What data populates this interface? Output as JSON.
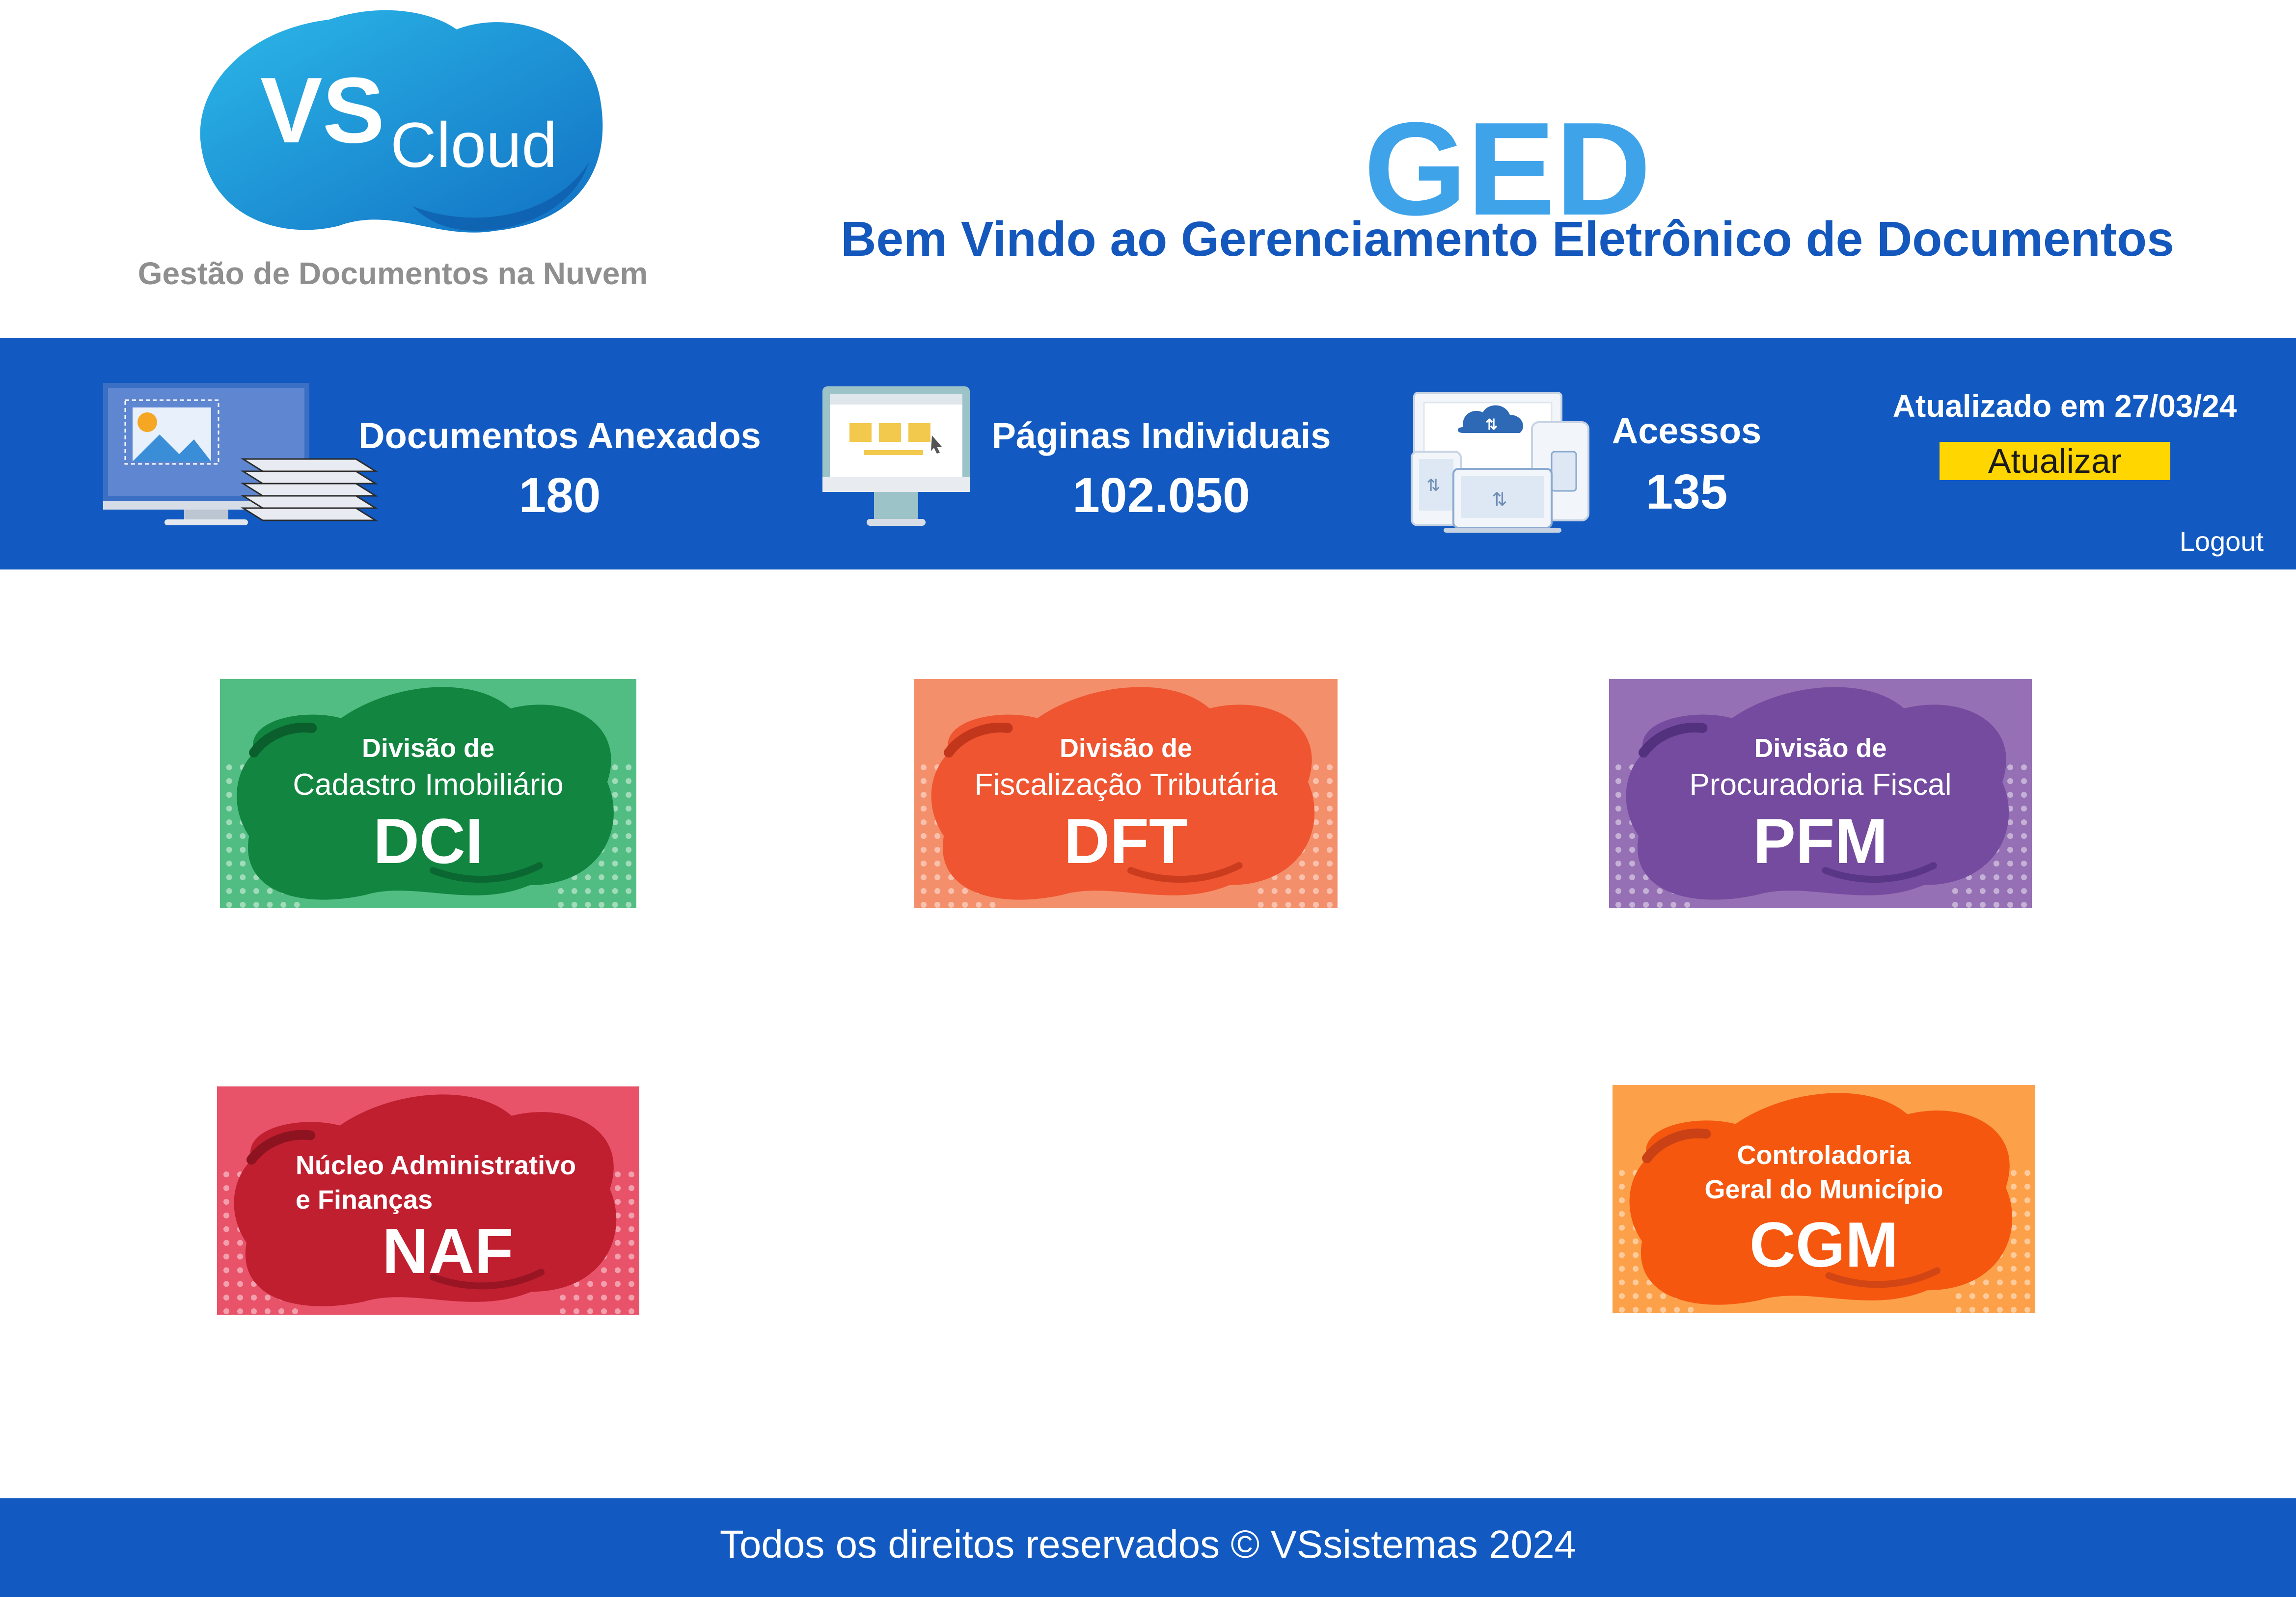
{
  "brand": {
    "logo_vs": "VS",
    "logo_cloud": "Cloud",
    "tagline": "Gestão de Documentos na Nuvem"
  },
  "header": {
    "title": "GED",
    "subtitle": "Bem Vindo ao Gerenciamento Eletrônico de Documentos"
  },
  "stats": {
    "documents": {
      "label": "Documentos Anexados",
      "value": "180",
      "icon": "monitor-documents-icon"
    },
    "pages": {
      "label": "Páginas Individuais",
      "value": "102.050",
      "icon": "monitor-pages-icon"
    },
    "accesses": {
      "label": "Acessos",
      "value": "135",
      "icon": "cloud-devices-icon"
    }
  },
  "update": {
    "text": "Atualizado em 27/03/24",
    "button_label": "Atualizar"
  },
  "logout_label": "Logout",
  "divisions": [
    {
      "line1": "Divisão de",
      "line2": "Cadastro Imobiliário",
      "code": "DCI",
      "bg": "#52bd82",
      "blob": "#128540",
      "dark": "#0a5f2d"
    },
    {
      "line1": "Divisão de",
      "line2": "Fiscalização Tributária",
      "code": "DFT",
      "bg": "#f48f6b",
      "blob": "#ee5530",
      "dark": "#c2361c"
    },
    {
      "line1": "Divisão de",
      "line2": "Procuradoria Fiscal",
      "code": "PFM",
      "bg": "#9670b4",
      "blob": "#744b9f",
      "dark": "#53317f"
    },
    {
      "line1": "Núcleo Administrativo",
      "line2": "e Finanças",
      "code": "NAF",
      "bg": "#e8536a",
      "blob": "#c01f30",
      "dark": "#8e1320"
    },
    {
      "line1": "Controladoria",
      "line2": "Geral do Município",
      "code": "CGM",
      "bg": "#fca14a",
      "blob": "#f5570f",
      "dark": "#c94115"
    }
  ],
  "footer": {
    "text": "Todos os direitos reservados © VSsistemas 2024"
  },
  "colors": {
    "primary_blue": "#125ac1",
    "title_blue": "#3fa3ea",
    "subtitle_blue": "#1458bd",
    "button_yellow": "#ffd600"
  }
}
